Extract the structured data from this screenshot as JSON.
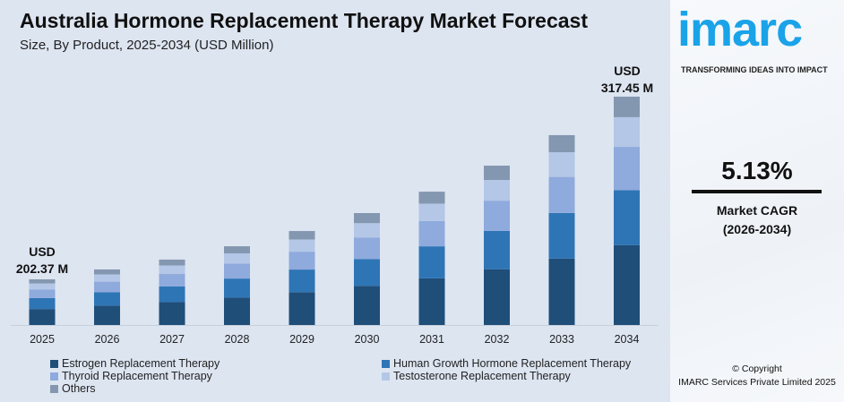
{
  "chart_data": {
    "type": "bar",
    "stacked": true,
    "title": "Australia Hormone Replacement Therapy Market Forecast",
    "subtitle": "Size, By Product, 2025-2034 (USD Million)",
    "categories": [
      "2025",
      "2026",
      "2027",
      "2028",
      "2029",
      "2030",
      "2031",
      "2032",
      "2033",
      "2034"
    ],
    "totals": [
      202.37,
      208.6,
      214.8,
      223.2,
      232.8,
      244.1,
      257.6,
      274.0,
      293.2,
      317.45
    ],
    "series": [
      {
        "name": "Estrogen Replacement Therapy",
        "color": "#1f4e79",
        "share": 0.35
      },
      {
        "name": "Human Growth Hormone Replacement Therapy",
        "color": "#2e75b6",
        "share": 0.24
      },
      {
        "name": "Thyroid Replacement Therapy",
        "color": "#8faadc",
        "share": 0.19
      },
      {
        "name": "Testosterone Replacement Therapy",
        "color": "#b4c7e7",
        "share": 0.13
      },
      {
        "name": "Others",
        "color": "#8497b0",
        "share": 0.09
      }
    ],
    "annotations": {
      "first_line1": "USD",
      "first_line2": "202.37 M",
      "last_line1": "USD",
      "last_line2": "317.45 M"
    },
    "grid": false,
    "legend": "bottom"
  },
  "panel": {
    "logo": "imarc",
    "tagline": "TRANSFORMING IDEAS INTO IMPACT",
    "cagr": "5.13%",
    "cagr_label1": "Market CAGR",
    "cagr_label2": "(2026-2034)",
    "copyright1": "© Copyright",
    "copyright2": "IMARC Services Private Limited 2025"
  }
}
